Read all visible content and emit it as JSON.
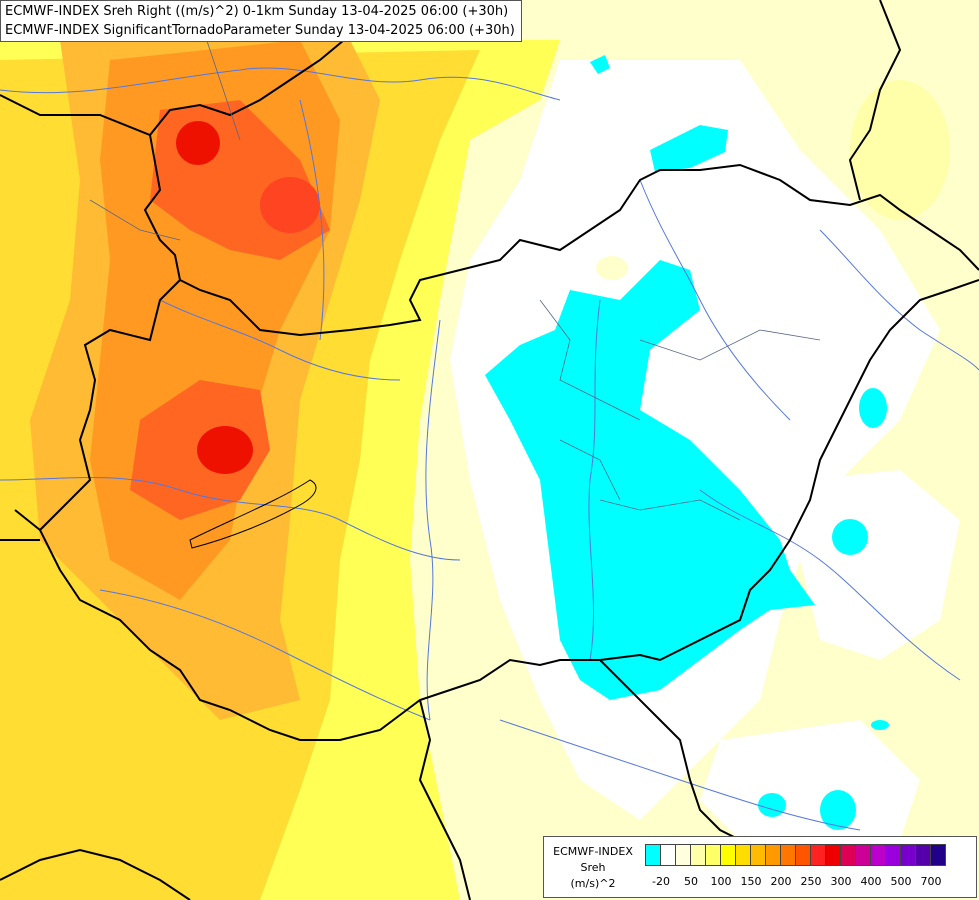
{
  "header": {
    "line1": "ECMWF-INDEX Sreh Right ((m/s)^2) 0-1km Sunday 13-04-2025 06:00 (+30h)",
    "line2": "ECMWF-INDEX SignificantTornadoParameter Sunday 13-04-2025 06:00 (+30h)"
  },
  "legend": {
    "label_line1": "ECMWF-INDEX",
    "label_line2": "Sreh",
    "label_line3": "(m/s)^2",
    "colors": [
      "#00ffff",
      "#ffffff",
      "#ffffe0",
      "#ffffaa",
      "#ffff66",
      "#ffff00",
      "#ffdd00",
      "#ffbb00",
      "#ff9900",
      "#ff7700",
      "#ff5500",
      "#ff2222",
      "#ee0000",
      "#dd0055",
      "#cc0099",
      "#bb00cc",
      "#9900dd",
      "#7700cc",
      "#5500aa",
      "#220088"
    ],
    "ticks": [
      "-20",
      "50",
      "100",
      "150",
      "200",
      "250",
      "300",
      "400",
      "500",
      "700"
    ]
  }
}
